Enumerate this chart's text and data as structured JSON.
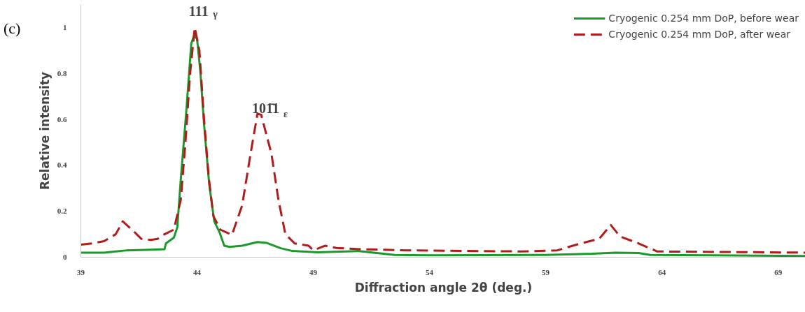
{
  "chart_data": {
    "type": "line",
    "xlabel": "Diffraction angle 2θ (deg.)",
    "ylabel": "Relative intensity",
    "xlim": [
      39,
      70.2
    ],
    "xticks": [
      39,
      44,
      49,
      54,
      59,
      64,
      69
    ],
    "ylim": [
      0,
      1.1
    ],
    "yticks": [
      0,
      0.2,
      0.4,
      0.6,
      0.8,
      1
    ],
    "grid": false,
    "legend": "top right",
    "marker": "none",
    "annotations": [
      "(c)",
      "111$_{γ}$",
      "101̄1$_{ε}$"
    ],
    "series": [
      {
        "name": "Cryogenic 0.254 mm DoP, before wear",
        "color": "#1a9a2a",
        "line_style": "solid",
        "x": [
          39,
          40,
          40.5,
          41,
          42,
          42.6,
          42.66,
          43.0,
          43.15,
          43.3,
          43.54,
          43.75,
          43.87,
          44,
          44.14,
          44.3,
          44.52,
          44.74,
          44.96,
          45.17,
          45.4,
          45.94,
          46.6,
          47.0,
          47.6,
          48.1,
          49.2,
          50.9,
          52.5,
          54,
          59,
          61,
          62,
          63,
          63.5,
          70.2
        ],
        "values": [
          0.02,
          0.02,
          0.025,
          0.03,
          0.033,
          0.035,
          0.06,
          0.085,
          0.13,
          0.34,
          0.64,
          0.93,
          0.965,
          0.95,
          0.81,
          0.58,
          0.32,
          0.156,
          0.11,
          0.05,
          0.045,
          0.05,
          0.066,
          0.062,
          0.039,
          0.027,
          0.021,
          0.027,
          0.01,
          0.008,
          0.01,
          0.015,
          0.02,
          0.018,
          0.01,
          0.005
        ]
      },
      {
        "name": "Cryogenic 0.254 mm DoP, after wear",
        "color": "#b01c1c",
        "line_style": "dashed",
        "x": [
          39,
          39.5,
          40,
          40.5,
          40.8,
          41.3,
          41.6,
          42,
          42.3,
          42.6,
          43.0,
          43.3,
          43.5,
          43.7,
          43.9,
          44.1,
          44.3,
          44.5,
          44.7,
          45,
          45.5,
          45.94,
          46.3,
          46.6,
          46.76,
          47.2,
          47.5,
          47.8,
          48.2,
          48.8,
          49,
          49.5,
          50,
          51,
          53,
          58,
          59.5,
          60.5,
          61.3,
          61.8,
          62.2,
          63,
          63.8,
          70.2
        ],
        "values": [
          0.055,
          0.06,
          0.07,
          0.1,
          0.156,
          0.11,
          0.08,
          0.075,
          0.08,
          0.1,
          0.12,
          0.25,
          0.5,
          0.8,
          1.0,
          0.9,
          0.6,
          0.35,
          0.18,
          0.12,
          0.097,
          0.226,
          0.45,
          0.625,
          0.62,
          0.45,
          0.25,
          0.1,
          0.06,
          0.05,
          0.03,
          0.05,
          0.04,
          0.035,
          0.03,
          0.025,
          0.03,
          0.06,
          0.08,
          0.14,
          0.09,
          0.06,
          0.025,
          0.02
        ]
      }
    ]
  }
}
